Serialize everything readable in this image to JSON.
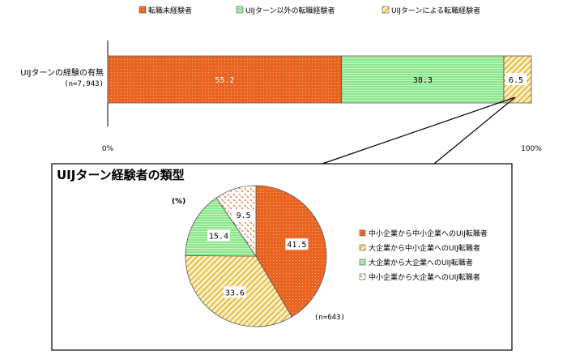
{
  "chart_data": [
    {
      "type": "bar",
      "orientation": "horizontal",
      "stacked": true,
      "categories": [
        "UIJターンの経験の有無"
      ],
      "category_note": "(n=7,943)",
      "series": [
        {
          "name": "転職未経験者",
          "values": [
            55.2
          ],
          "color": "#E86420"
        },
        {
          "name": "UIJターン以外の転職経験者",
          "values": [
            38.3
          ],
          "color": "#8CE68C"
        },
        {
          "name": "UIJターンによる転職経験者",
          "values": [
            6.5
          ],
          "color": "#F2D27A"
        }
      ],
      "value_labels": [
        "55.2",
        "38.3",
        "6.5"
      ],
      "xlim": [
        0,
        100
      ],
      "x_ticks": [
        "0%",
        "100%"
      ],
      "legend_position": "top"
    },
    {
      "type": "pie",
      "title": "UIJターン経験者の類型",
      "unit_label": "(%)",
      "n_label": "(n=643)",
      "slices": [
        {
          "name": "中小企業から中小企業へのUIJ転職者",
          "value": 41.5,
          "label": "41.5",
          "color": "#E86420"
        },
        {
          "name": "大企業から中小企業へのUIJ転職者",
          "value": 33.6,
          "label": "33.6",
          "color": "#F2D27A"
        },
        {
          "name": "大企業から大企業へのUIJ転職者",
          "value": 15.4,
          "label": "15.4",
          "color": "#8CE68C"
        },
        {
          "name": "中小企業から大企業へのUIJ転職者",
          "value": 9.5,
          "label": "9.5",
          "color": "#F3A06A"
        }
      ],
      "legend_position": "right"
    }
  ]
}
